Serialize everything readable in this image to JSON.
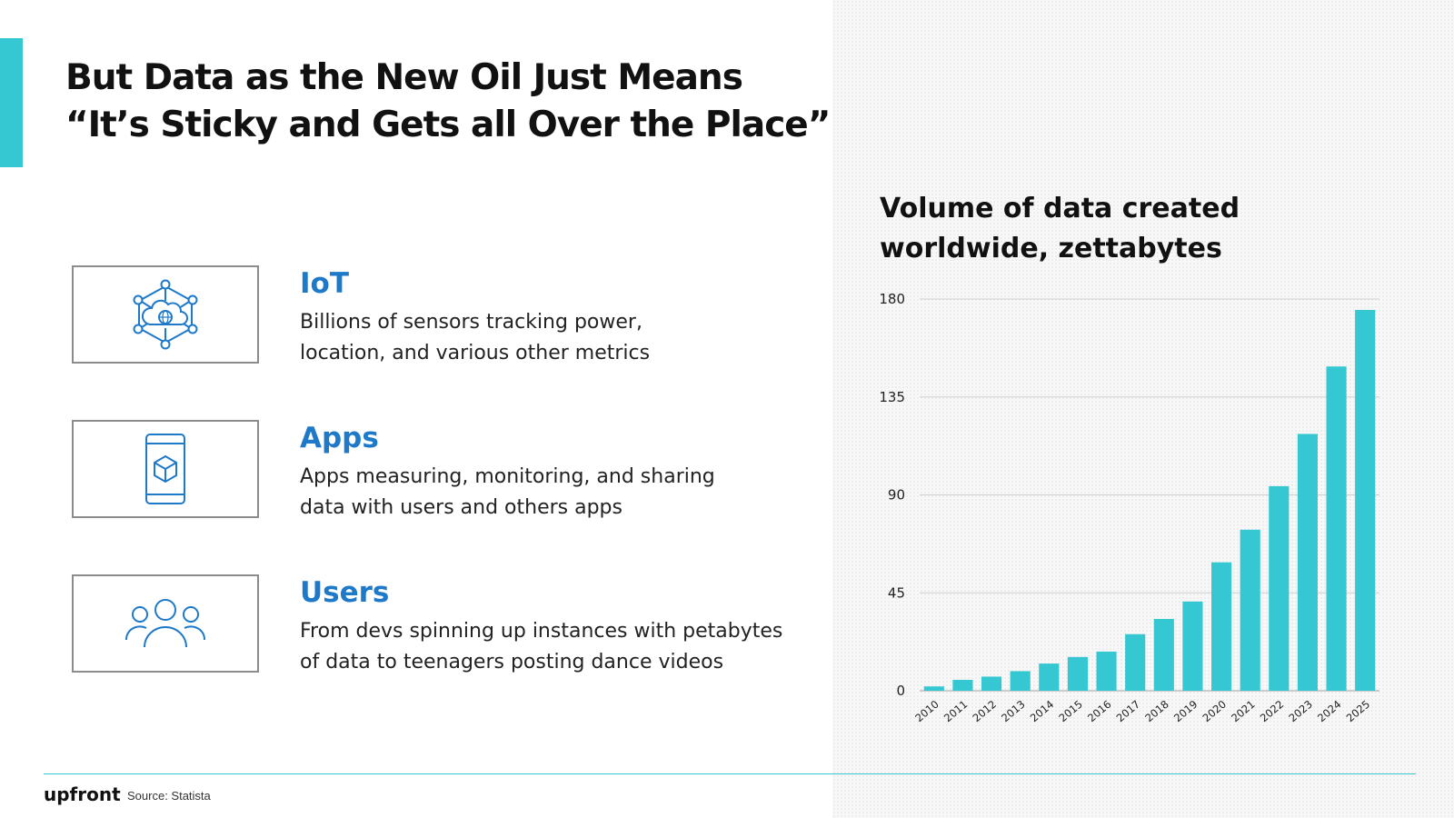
{
  "slide": {
    "title_lines": [
      "But Data as the New Oil Just Means",
      "“It’s Sticky and Gets all Over the Place”"
    ],
    "accent_color": "#35c8d2",
    "heading_color": "#1e79c9"
  },
  "features": [
    {
      "icon": "iot-network-icon",
      "title": "IoT",
      "desc_lines": [
        "Billions of sensors tracking power,",
        "location, and various other metrics"
      ]
    },
    {
      "icon": "mobile-app-icon",
      "title": "Apps",
      "desc_lines": [
        "Apps measuring, monitoring, and sharing",
        "data with users and others apps"
      ]
    },
    {
      "icon": "users-group-icon",
      "title": "Users",
      "desc_lines": [
        "From devs spinning up instances with petabytes",
        "of data to teenagers posting dance videos"
      ]
    }
  ],
  "chart_data": {
    "type": "bar",
    "title_lines": [
      "Volume of data created",
      "worldwide, zettabytes"
    ],
    "categories": [
      "2010",
      "2011",
      "2012",
      "2013",
      "2014",
      "2015",
      "2016",
      "2017",
      "2018",
      "2019",
      "2020",
      "2021",
      "2022",
      "2023",
      "2024",
      "2025"
    ],
    "values": [
      2,
      5,
      6.5,
      9,
      12.5,
      15.5,
      18,
      26,
      33,
      41,
      59,
      74,
      94,
      118,
      149,
      175
    ],
    "ylim": [
      0,
      180
    ],
    "yticks": [
      0,
      45,
      90,
      135,
      180
    ],
    "bar_color": "#35c8d2",
    "grid": true,
    "legend": "none"
  },
  "footer": {
    "logo": "upfront",
    "source": "Source: Statista"
  }
}
